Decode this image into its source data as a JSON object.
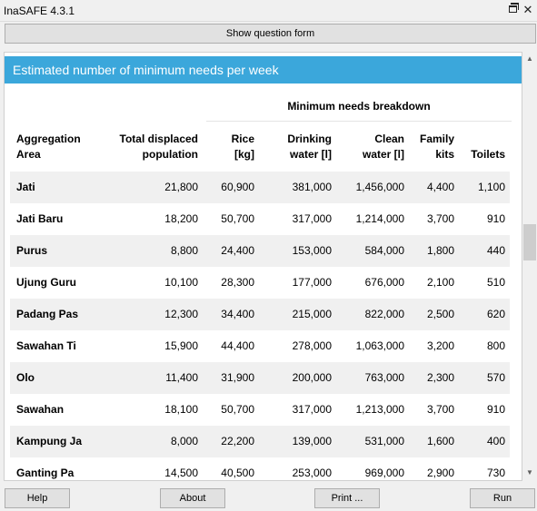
{
  "window": {
    "title": "InaSAFE 4.3.1"
  },
  "toolbar": {
    "show_question_label": "Show question form"
  },
  "report": {
    "heading": "Estimated number of minimum needs per week",
    "group_header": "Minimum needs breakdown",
    "columns": [
      [
        "Aggregation",
        "Area"
      ],
      [
        "Total displaced",
        "population"
      ],
      [
        "Rice",
        "[kg]"
      ],
      [
        "Drinking",
        "water [l]"
      ],
      [
        "Clean",
        "water [l]"
      ],
      [
        "Family",
        "kits"
      ],
      [
        "",
        "Toilets"
      ]
    ],
    "rows": [
      [
        "Jati",
        "21,800",
        "60,900",
        "381,000",
        "1,456,000",
        "4,400",
        "1,100"
      ],
      [
        "Jati Baru",
        "18,200",
        "50,700",
        "317,000",
        "1,214,000",
        "3,700",
        "910"
      ],
      [
        "Purus",
        "8,800",
        "24,400",
        "153,000",
        "584,000",
        "1,800",
        "440"
      ],
      [
        "Ujung Guru",
        "10,100",
        "28,300",
        "177,000",
        "676,000",
        "2,100",
        "510"
      ],
      [
        "Padang Pas",
        "12,300",
        "34,400",
        "215,000",
        "822,000",
        "2,500",
        "620"
      ],
      [
        "Sawahan Ti",
        "15,900",
        "44,400",
        "278,000",
        "1,063,000",
        "3,200",
        "800"
      ],
      [
        "Olo",
        "11,400",
        "31,900",
        "200,000",
        "763,000",
        "2,300",
        "570"
      ],
      [
        "Sawahan",
        "18,100",
        "50,700",
        "317,000",
        "1,213,000",
        "3,700",
        "910"
      ],
      [
        "Kampung Ja",
        "8,000",
        "22,200",
        "139,000",
        "531,000",
        "1,600",
        "400"
      ],
      [
        "Ganting Pa",
        "14,500",
        "40,500",
        "253,000",
        "969,000",
        "2,900",
        "730"
      ]
    ]
  },
  "footer": {
    "help_label": "Help",
    "about_label": "About",
    "print_label": "Print ...",
    "run_label": "Run"
  },
  "colors": {
    "heading_bg": "#3ba7db",
    "stripe": "#f0f0f0"
  }
}
